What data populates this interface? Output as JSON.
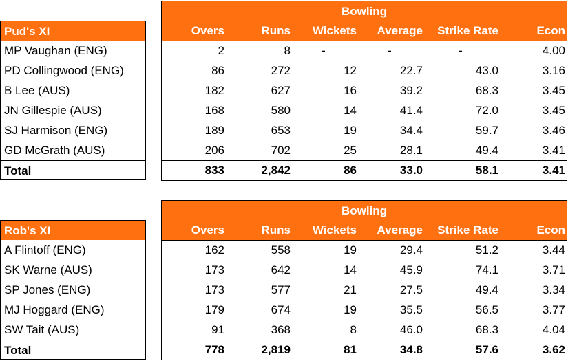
{
  "columns": [
    "Overs",
    "Runs",
    "Wickets",
    "Average",
    "Strike Rate",
    "Econ"
  ],
  "group_label": "Bowling",
  "teams": [
    {
      "name": "Pud's XI",
      "rows": [
        {
          "player": "MP Vaughan (ENG)",
          "stats": [
            "2",
            "8",
            "-",
            "-",
            "-",
            "4.00"
          ]
        },
        {
          "player": "PD Collingwood (ENG)",
          "stats": [
            "86",
            "272",
            "12",
            "22.7",
            "43.0",
            "3.16"
          ]
        },
        {
          "player": "B Lee (AUS)",
          "stats": [
            "182",
            "627",
            "16",
            "39.2",
            "68.3",
            "3.45"
          ]
        },
        {
          "player": "JN Gillespie (AUS)",
          "stats": [
            "168",
            "580",
            "14",
            "41.4",
            "72.0",
            "3.45"
          ]
        },
        {
          "player": "SJ Harmison (ENG)",
          "stats": [
            "189",
            "653",
            "19",
            "34.4",
            "59.7",
            "3.46"
          ]
        },
        {
          "player": "GD McGrath (AUS)",
          "stats": [
            "206",
            "702",
            "25",
            "28.1",
            "49.4",
            "3.41"
          ]
        }
      ],
      "total": {
        "label": "Total",
        "stats": [
          "833",
          "2,842",
          "86",
          "33.0",
          "58.1",
          "3.41"
        ]
      }
    },
    {
      "name": "Rob's XI",
      "rows": [
        {
          "player": "A Flintoff (ENG)",
          "stats": [
            "162",
            "558",
            "19",
            "29.4",
            "51.2",
            "3.44"
          ]
        },
        {
          "player": "SK Warne (AUS)",
          "stats": [
            "173",
            "642",
            "14",
            "45.9",
            "74.1",
            "3.71"
          ]
        },
        {
          "player": "SP Jones (ENG)",
          "stats": [
            "173",
            "577",
            "21",
            "27.5",
            "49.4",
            "3.34"
          ]
        },
        {
          "player": "MJ Hoggard (ENG)",
          "stats": [
            "179",
            "674",
            "19",
            "35.5",
            "56.5",
            "3.77"
          ]
        },
        {
          "player": "SW Tait (AUS)",
          "stats": [
            "91",
            "368",
            "8",
            "46.0",
            "68.3",
            "4.04"
          ]
        }
      ],
      "total": {
        "label": "Total",
        "stats": [
          "778",
          "2,819",
          "81",
          "34.8",
          "57.6",
          "3.62"
        ]
      }
    }
  ]
}
